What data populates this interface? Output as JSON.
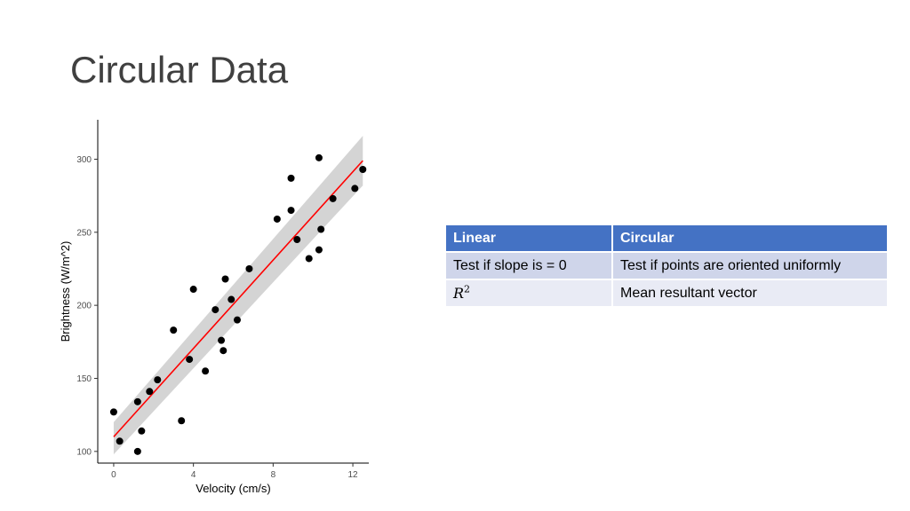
{
  "slide": {
    "title": "Circular Data"
  },
  "chart_data": {
    "type": "scatter",
    "xlabel": "Velocity (cm/s)",
    "ylabel": "Brightness (W/m^2)",
    "xlim": [
      -0.8,
      12.8
    ],
    "ylim": [
      92,
      327
    ],
    "x_ticks": [
      0,
      4,
      8,
      12
    ],
    "y_ticks": [
      100,
      150,
      200,
      250,
      300
    ],
    "grid": false,
    "points": [
      {
        "x": 0.0,
        "y": 127
      },
      {
        "x": 0.3,
        "y": 107
      },
      {
        "x": 1.2,
        "y": 100
      },
      {
        "x": 1.2,
        "y": 134
      },
      {
        "x": 1.4,
        "y": 114
      },
      {
        "x": 1.8,
        "y": 141
      },
      {
        "x": 2.2,
        "y": 149
      },
      {
        "x": 3.0,
        "y": 183
      },
      {
        "x": 3.4,
        "y": 121
      },
      {
        "x": 3.8,
        "y": 163
      },
      {
        "x": 4.0,
        "y": 211
      },
      {
        "x": 4.6,
        "y": 155
      },
      {
        "x": 5.1,
        "y": 197
      },
      {
        "x": 5.4,
        "y": 176
      },
      {
        "x": 5.5,
        "y": 169
      },
      {
        "x": 5.6,
        "y": 218
      },
      {
        "x": 5.9,
        "y": 204
      },
      {
        "x": 6.2,
        "y": 190
      },
      {
        "x": 6.8,
        "y": 225
      },
      {
        "x": 8.2,
        "y": 259
      },
      {
        "x": 8.9,
        "y": 265
      },
      {
        "x": 8.9,
        "y": 287
      },
      {
        "x": 9.2,
        "y": 245
      },
      {
        "x": 9.8,
        "y": 232
      },
      {
        "x": 10.3,
        "y": 238
      },
      {
        "x": 10.3,
        "y": 301
      },
      {
        "x": 10.4,
        "y": 252
      },
      {
        "x": 11.0,
        "y": 273
      },
      {
        "x": 12.1,
        "y": 280
      },
      {
        "x": 12.5,
        "y": 293
      }
    ],
    "fit_line": {
      "x": [
        0,
        12.5
      ],
      "y": [
        110,
        299
      ],
      "color": "#ff0000"
    },
    "confidence_band": {
      "x": [
        0,
        12.5
      ],
      "upper": [
        120,
        316
      ],
      "lower": [
        98,
        282
      ],
      "color": "#c9c9c9"
    },
    "point_color": "#000000"
  },
  "table": {
    "headers": [
      "Linear",
      "Circular"
    ],
    "rows": [
      [
        "Test if slope is = 0",
        "Test if points are oriented uniformly"
      ],
      [
        "R",
        "Mean resultant vector"
      ]
    ],
    "r_exponent": "2",
    "header_color": "#4472c4"
  }
}
